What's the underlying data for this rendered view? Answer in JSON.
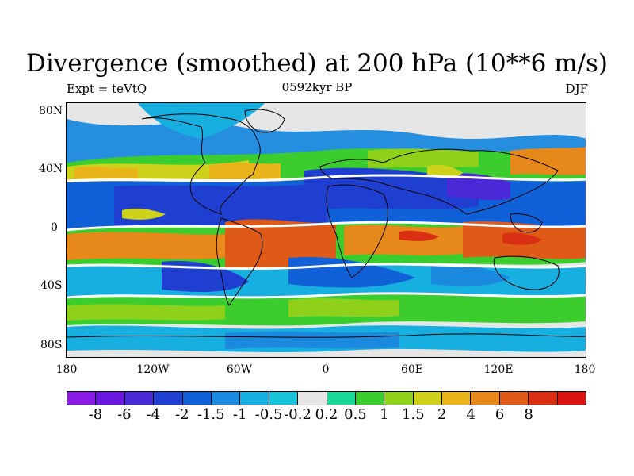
{
  "title": "Divergence (smoothed) at 200 hPa (10**6 m/s)",
  "left_label": "Expt = teVtQ",
  "center_label": "0592kyr BP",
  "right_label": "DJF",
  "lat_ticks": [
    "80N",
    "40N",
    "0",
    "40S",
    "80S"
  ],
  "lon_ticks": [
    "180",
    "120W",
    "60W",
    "0",
    "60E",
    "120E",
    "180"
  ],
  "colorbar": {
    "colors": [
      "#8a1ce6",
      "#6a17e0",
      "#4a2ad6",
      "#1f3fd0",
      "#1060d8",
      "#1b89dd",
      "#17aee0",
      "#18c4d8",
      "#e6e6e6",
      "#1ad89a",
      "#3acd2d",
      "#8fd11a",
      "#cfd21a",
      "#e8b41a",
      "#e6881a",
      "#e05a17",
      "#d92f12",
      "#d9130f"
    ],
    "labels": [
      "-8",
      "-6",
      "-4",
      "-2",
      "-1.5",
      "-1",
      "-0.5",
      "-0.2",
      "0.2",
      "0.5",
      "1",
      "1.5",
      "2",
      "4",
      "6",
      "8"
    ]
  }
}
